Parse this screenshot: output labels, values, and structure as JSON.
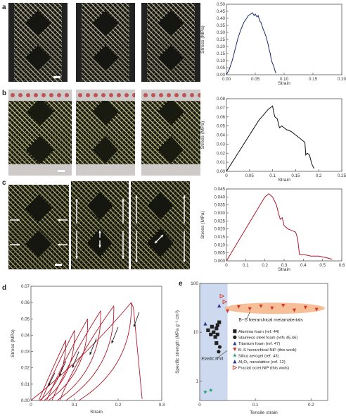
{
  "panels": {
    "a": "a",
    "b": "b",
    "c": "c",
    "d": "d",
    "e": "e"
  },
  "chart_data": [
    {
      "id": "chart-a",
      "type": "line",
      "xlabel": "Strain",
      "ylabel": "Stress (MPa)",
      "xlim": [
        0,
        0.2
      ],
      "ylim": [
        0,
        0.5
      ],
      "xticks": [
        0.0,
        0.05,
        0.1,
        0.15,
        0.2
      ],
      "xtick_labels": [
        "0.00",
        "0.05",
        "0.10",
        "0.15",
        "0.20"
      ],
      "yticks": [
        0,
        0.05,
        0.1,
        0.15,
        0.2,
        0.25,
        0.3,
        0.35,
        0.4,
        0.45,
        0.5
      ],
      "ytick_labels": [
        "0.00",
        "0.05",
        "0.10",
        "0.15",
        "0.20",
        "0.25",
        "0.30",
        "0.35",
        "0.40",
        "0.45",
        "0.50"
      ],
      "color": "#1a2a6c",
      "series": [
        {
          "x": [
            0,
            0.005,
            0.01,
            0.015,
            0.02,
            0.025,
            0.03,
            0.035,
            0.038,
            0.042,
            0.045,
            0.048,
            0.05,
            0.053,
            0.055,
            0.058,
            0.06,
            0.063,
            0.066,
            0.068,
            0.07,
            0.072,
            0.074,
            0.076,
            0.078,
            0.08,
            0.082,
            0.084,
            0.086
          ],
          "y": [
            0,
            0.04,
            0.1,
            0.18,
            0.26,
            0.32,
            0.37,
            0.4,
            0.42,
            0.43,
            0.44,
            0.42,
            0.43,
            0.41,
            0.42,
            0.38,
            0.37,
            0.33,
            0.3,
            0.28,
            0.25,
            0.22,
            0.18,
            0.15,
            0.1,
            0.08,
            0.06,
            0.03,
            0.01
          ]
        }
      ]
    },
    {
      "id": "chart-b",
      "type": "line",
      "xlabel": "Strain",
      "ylabel": "Stress (MPa)",
      "xlim": [
        0,
        0.25
      ],
      "ylim": [
        0,
        0.08
      ],
      "xticks": [
        0,
        0.05,
        0.1,
        0.15,
        0.2,
        0.25
      ],
      "xtick_labels": [
        "0",
        "0.05",
        "0.1",
        "0.15",
        "0.2",
        "0.25"
      ],
      "yticks": [
        0,
        0.01,
        0.02,
        0.03,
        0.04,
        0.05,
        0.06,
        0.07,
        0.08
      ],
      "ytick_labels": [
        "0.00",
        "0.01",
        "0.02",
        "0.03",
        "0.04",
        "0.05",
        "0.06",
        "0.07",
        "0.08"
      ],
      "color": "#111111",
      "series": [
        {
          "x": [
            0,
            0.01,
            0.02,
            0.03,
            0.04,
            0.05,
            0.06,
            0.07,
            0.08,
            0.09,
            0.095,
            0.1,
            0.102,
            0.105,
            0.11,
            0.115,
            0.12,
            0.13,
            0.14,
            0.15,
            0.16,
            0.165,
            0.17,
            0.172,
            0.175,
            0.18,
            0.185,
            0.19
          ],
          "y": [
            0,
            0.008,
            0.016,
            0.024,
            0.032,
            0.04,
            0.048,
            0.056,
            0.062,
            0.068,
            0.07,
            0.072,
            0.066,
            0.06,
            0.058,
            0.048,
            0.05,
            0.046,
            0.044,
            0.04,
            0.036,
            0.034,
            0.032,
            0.018,
            0.02,
            0.018,
            0.008,
            0.003
          ]
        }
      ]
    },
    {
      "id": "chart-c",
      "type": "line",
      "xlabel": "Strain",
      "ylabel": "Stress (MPa)",
      "xlim": [
        0,
        0.6
      ],
      "ylim": [
        0,
        0.045
      ],
      "xticks": [
        0,
        0.1,
        0.2,
        0.3,
        0.4,
        0.5,
        0.6
      ],
      "xtick_labels": [
        "0",
        "0.1",
        "0.2",
        "0.3",
        "0.4",
        "0.5",
        "0.6"
      ],
      "yticks": [
        0,
        0.005,
        0.01,
        0.015,
        0.02,
        0.025,
        0.03,
        0.035,
        0.04,
        0.045
      ],
      "ytick_labels": [
        "0.000",
        "0.005",
        "0.010",
        "0.015",
        "0.020",
        "0.025",
        "0.030",
        "0.035",
        "0.040",
        "0.045"
      ],
      "color": "#b0182a",
      "series": [
        {
          "x": [
            0,
            0.05,
            0.1,
            0.15,
            0.18,
            0.2,
            0.22,
            0.24,
            0.26,
            0.27,
            0.28,
            0.29,
            0.3,
            0.32,
            0.34,
            0.36,
            0.37,
            0.38,
            0.4,
            0.44,
            0.48,
            0.52,
            0.55
          ],
          "y": [
            0,
            0.01,
            0.02,
            0.03,
            0.036,
            0.04,
            0.042,
            0.04,
            0.035,
            0.03,
            0.026,
            0.027,
            0.022,
            0.02,
            0.019,
            0.018,
            0.014,
            0.004,
            0.004,
            0.003,
            0.003,
            0.002,
            0.001
          ]
        }
      ]
    },
    {
      "id": "chart-d",
      "type": "line",
      "xlabel": "Strain",
      "ylabel": "Stress (MPa)",
      "xlim": [
        0,
        0.3
      ],
      "ylim": [
        0,
        0.07
      ],
      "xticks": [
        0,
        0.1,
        0.2,
        0.3
      ],
      "xtick_labels": [
        "0",
        "0.1",
        "0.2",
        "0.3"
      ],
      "yticks": [
        0,
        0.01,
        0.02,
        0.03,
        0.04,
        0.05,
        0.06,
        0.07
      ],
      "ytick_labels": [
        "0.00",
        "0.01",
        "0.02",
        "0.03",
        "0.04",
        "0.05",
        "0.06",
        "0.07"
      ],
      "color": "#b0182a",
      "peaks": [
        [
          0.23,
          0.06
        ],
        [
          0.19,
          0.058
        ],
        [
          0.16,
          0.055
        ],
        [
          0.13,
          0.05
        ],
        [
          0.1,
          0.043
        ],
        [
          0.08,
          0.037
        ]
      ],
      "residuals": [
        0.11,
        0.08,
        0.06,
        0.04,
        0.03,
        0.02
      ]
    },
    {
      "id": "chart-e",
      "type": "scatter",
      "xlabel": "Tensile strain",
      "ylabel": "Specific strength (MPa g⁻¹ cm³)",
      "yscale": "log",
      "xlim": [
        0,
        0.23
      ],
      "ylim": [
        0.4,
        100
      ],
      "xticks": [
        0,
        0.1,
        0.2
      ],
      "xtick_labels": [
        "0",
        "0.1",
        "0.2"
      ],
      "yticks": [
        1,
        10,
        100
      ],
      "ytick_labels": [
        "1",
        "10",
        "100"
      ],
      "elastic_limit_x": 0.05,
      "annotations": {
        "elastic": "Elastic limit",
        "hier": "B–S hierarchical metamaterials"
      },
      "series": [
        {
          "name": "Alumina foam (ref. 44)",
          "marker": "square",
          "color": "#222222",
          "points": [
            [
              0.015,
              11
            ],
            [
              0.02,
              9
            ],
            [
              0.022,
              13
            ],
            [
              0.025,
              10
            ],
            [
              0.028,
              8
            ],
            [
              0.03,
              12
            ],
            [
              0.032,
              14
            ],
            [
              0.035,
              16
            ],
            [
              0.032,
              9
            ],
            [
              0.03,
              6
            ]
          ]
        },
        {
          "name": "Stainless steel foam (refs 45,46)",
          "marker": "circle",
          "color": "#222222",
          "points": [
            [
              0.034,
              4
            ],
            [
              0.036,
              5
            ]
          ]
        },
        {
          "name": "Titanium foam (ref. 47)",
          "marker": "triangle",
          "color": "#2a3b8f",
          "points": [
            [
              0.01,
              15
            ]
          ]
        },
        {
          "name": "B–S hierarchical NiP (this work)",
          "marker": "invtriangle",
          "color": "#d23a2a",
          "points": [
            [
              0.05,
              27
            ],
            [
              0.07,
              33
            ],
            [
              0.09,
              30
            ],
            [
              0.11,
              34
            ],
            [
              0.13,
              31
            ],
            [
              0.15,
              35
            ],
            [
              0.17,
              28
            ],
            [
              0.19,
              32
            ],
            [
              0.21,
              29
            ]
          ]
        },
        {
          "name": "Silica aerogel (ref. 43)",
          "marker": "star",
          "color": "#1a9a6a",
          "points": [
            [
              0.01,
              0.6
            ],
            [
              0.02,
              0.65
            ]
          ]
        },
        {
          "name": "Al₂O₃ nanolattice (ref. 12)",
          "marker": "triangle",
          "color": "#2a3b8f",
          "points": [
            [
              0.035,
              35
            ]
          ]
        },
        {
          "name": "Fractal octet NiP (this work)",
          "marker": "opentriangle",
          "color": "#d23a2a",
          "points": [
            [
              0.04,
              55
            ],
            [
              0.045,
              42
            ]
          ]
        }
      ]
    }
  ]
}
